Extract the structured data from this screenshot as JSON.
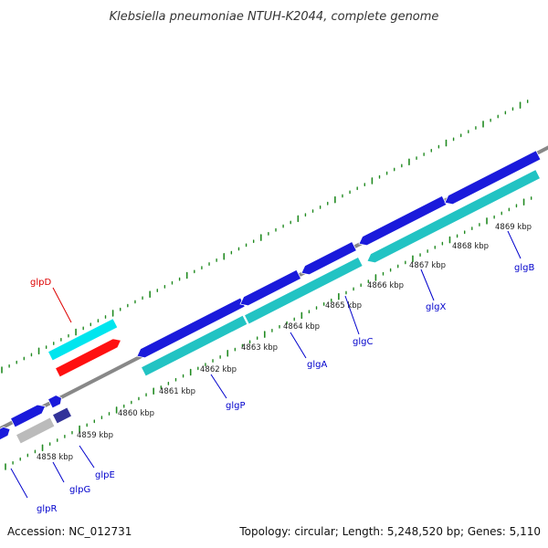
{
  "title": "Klebsiella pneumoniae NTUH-K2044, complete genome",
  "footer": {
    "accession": "Accession: NC_012731",
    "summary": "Topology: circular; Length: 5,248,520 bp; Genes: 5,110"
  },
  "colors": {
    "backbone": "#888888",
    "forward_gene": "#1a1adb",
    "reverse_gene": "#22c3c3",
    "highlight_forward": "#00e5ee",
    "highlight_reverse": "#ff1010",
    "pseudo_gene": "#bbbbbb",
    "dark_gene": "#333399",
    "tick_green": "#228b22",
    "label_blue": "#0000cc",
    "label_red": "#dd0000"
  },
  "scale_ticks": [
    "4858 kbp",
    "4859 kbp",
    "4860 kbp",
    "4861 kbp",
    "4862 kbp",
    "4863 kbp",
    "4864 kbp",
    "4865 kbp",
    "4866 kbp",
    "4867 kbp",
    "4868 kbp",
    "4869 kbp"
  ],
  "gene_labels": [
    "glpR",
    "glpG",
    "glpE",
    "glpD",
    "glgP",
    "glgA",
    "glgC",
    "glgX",
    "glgB"
  ]
}
